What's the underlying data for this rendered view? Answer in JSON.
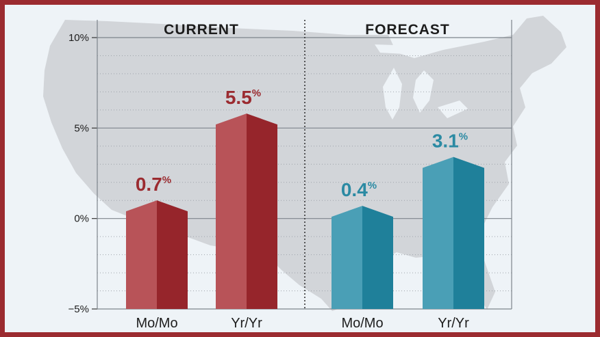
{
  "colors": {
    "border": "#9b2b30",
    "background": "#eef3f7",
    "map": "#d2d5d9",
    "current_light": "#b85358",
    "current_dark": "#96252b",
    "current_label": "#9b2b30",
    "forecast_light": "#4a9fb6",
    "forecast_dark": "#1f809a",
    "forecast_label": "#2b8aa3"
  },
  "chart_data": {
    "type": "bar",
    "ylim": [
      -5,
      10
    ],
    "yticks": [
      {
        "value": 10,
        "label": "10%"
      },
      {
        "value": 5,
        "label": "5%"
      },
      {
        "value": 0,
        "label": "0%"
      },
      {
        "value": -5,
        "label": "−5%"
      }
    ],
    "grid": true,
    "background": "map of the United States",
    "panels": [
      {
        "title": "CURRENT",
        "color": "current",
        "bars": [
          {
            "category": "Mo/Mo",
            "value": 0.7,
            "label_num": "0.7",
            "label_unit": "%"
          },
          {
            "category": "Yr/Yr",
            "value": 5.5,
            "label_num": "5.5",
            "label_unit": "%"
          }
        ]
      },
      {
        "title": "FORECAST",
        "color": "forecast",
        "bars": [
          {
            "category": "Mo/Mo",
            "value": 0.4,
            "label_num": "0.4",
            "label_unit": "%"
          },
          {
            "category": "Yr/Yr",
            "value": 3.1,
            "label_num": "3.1",
            "label_unit": "%"
          }
        ]
      }
    ]
  }
}
